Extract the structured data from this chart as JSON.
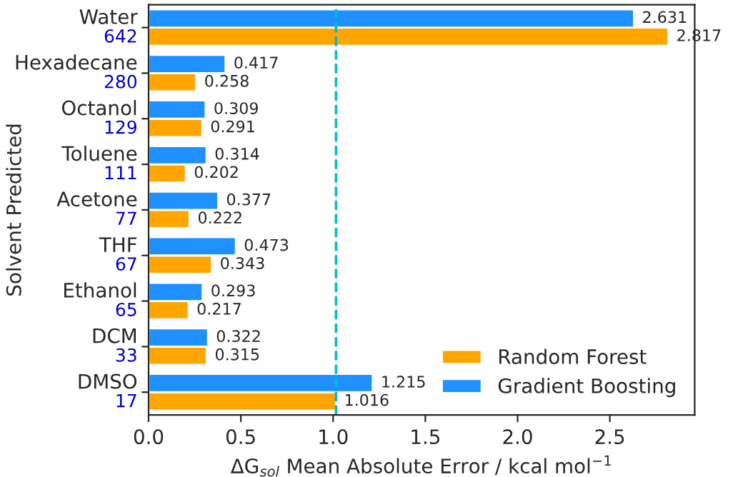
{
  "chart_data": {
    "type": "bar",
    "orientation": "horizontal",
    "xlabel": "ΔG$_{sol}$ Mean Absolute Error / kcal mol$^{−1}$",
    "ylabel": "Solvent Predicted",
    "categories": [
      "Water",
      "Hexadecane",
      "Octanol",
      "Toluene",
      "Acetone",
      "THF",
      "Ethanol",
      "DCM",
      "DMSO"
    ],
    "series": [
      {
        "name": "Random Forest",
        "color": "#ffa500",
        "values": [
          2.817,
          0.258,
          0.291,
          0.202,
          0.222,
          0.343,
          0.217,
          0.315,
          1.016
        ]
      },
      {
        "name": "Gradient Boosting",
        "color": "#1e90ff",
        "values": [
          2.631,
          0.417,
          0.309,
          0.314,
          0.377,
          0.473,
          0.293,
          0.322,
          1.215
        ]
      }
    ],
    "annotations": [
      "642",
      "280",
      "129",
      "111",
      "77",
      "67",
      "65",
      "33",
      "17"
    ],
    "ref_lines": [
      {
        "axis": "x",
        "value": 1.016,
        "color": "#00bcd4",
        "line_style": "dashed"
      }
    ],
    "xlim": [
      0,
      2.96
    ],
    "xticks": [
      {
        "value": 0,
        "label": "0.0"
      },
      {
        "value": 0.5,
        "label": "0.5"
      },
      {
        "value": 1,
        "label": "1.0"
      },
      {
        "value": 1.5,
        "label": "1.5"
      },
      {
        "value": 2,
        "label": "2.0"
      },
      {
        "value": 2.5,
        "label": "2.5"
      }
    ],
    "data_labels": true,
    "legend": "bottom right",
    "grid": false
  }
}
